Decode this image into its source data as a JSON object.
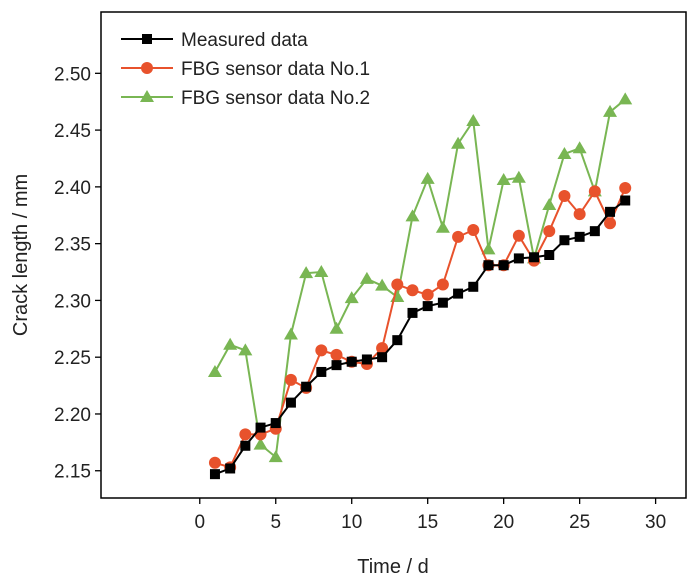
{
  "chart_data": {
    "type": "line",
    "title": "",
    "xlabel": "Time / d",
    "ylabel": "Crack length / mm",
    "xlim": [
      -6.5,
      32
    ],
    "ylim": [
      2.126,
      2.554
    ],
    "xticks": [
      0,
      5,
      10,
      15,
      20,
      25,
      30
    ],
    "yticks": [
      2.15,
      2.2,
      2.25,
      2.3,
      2.35,
      2.4,
      2.45,
      2.5
    ],
    "xtick_labels": [
      "0",
      "5",
      "10",
      "15",
      "20",
      "25",
      "30"
    ],
    "ytick_labels": [
      "2.15",
      "2.20",
      "2.25",
      "2.30",
      "2.35",
      "2.40",
      "2.45",
      "2.50"
    ],
    "grid": false,
    "legend_position": "top-left",
    "x": [
      1,
      2,
      3,
      4,
      5,
      6,
      7,
      8,
      9,
      10,
      11,
      12,
      13,
      14,
      15,
      16,
      17,
      18,
      19,
      20,
      21,
      22,
      23,
      24,
      25,
      26,
      27,
      28
    ],
    "series": [
      {
        "name": "Measured data",
        "color": "#000000",
        "marker": "square",
        "values": [
          2.147,
          2.152,
          2.172,
          2.188,
          2.192,
          2.21,
          2.224,
          2.237,
          2.243,
          2.246,
          2.248,
          2.25,
          2.265,
          2.289,
          2.295,
          2.298,
          2.306,
          2.312,
          2.331,
          2.331,
          2.337,
          2.338,
          2.34,
          2.353,
          2.356,
          2.361,
          2.378,
          2.388
        ]
      },
      {
        "name": "FBG sensor data No.1",
        "color": "#e8522c",
        "marker": "circle",
        "values": [
          2.157,
          2.153,
          2.182,
          2.182,
          2.187,
          2.23,
          2.223,
          2.256,
          2.252,
          2.246,
          2.244,
          2.258,
          2.314,
          2.309,
          2.305,
          2.314,
          2.356,
          2.362,
          2.331,
          2.331,
          2.357,
          2.335,
          2.361,
          2.392,
          2.376,
          2.396,
          2.368,
          2.399
        ]
      },
      {
        "name": "FBG sensor data No.2",
        "color": "#79b653",
        "marker": "triangle",
        "values": [
          2.237,
          2.261,
          2.256,
          2.173,
          2.162,
          2.27,
          2.324,
          2.325,
          2.275,
          2.302,
          2.319,
          2.313,
          2.303,
          2.374,
          2.407,
          2.364,
          2.438,
          2.458,
          2.345,
          2.406,
          2.408,
          2.337,
          2.384,
          2.429,
          2.434,
          2.396,
          2.466,
          2.477
        ]
      }
    ]
  }
}
